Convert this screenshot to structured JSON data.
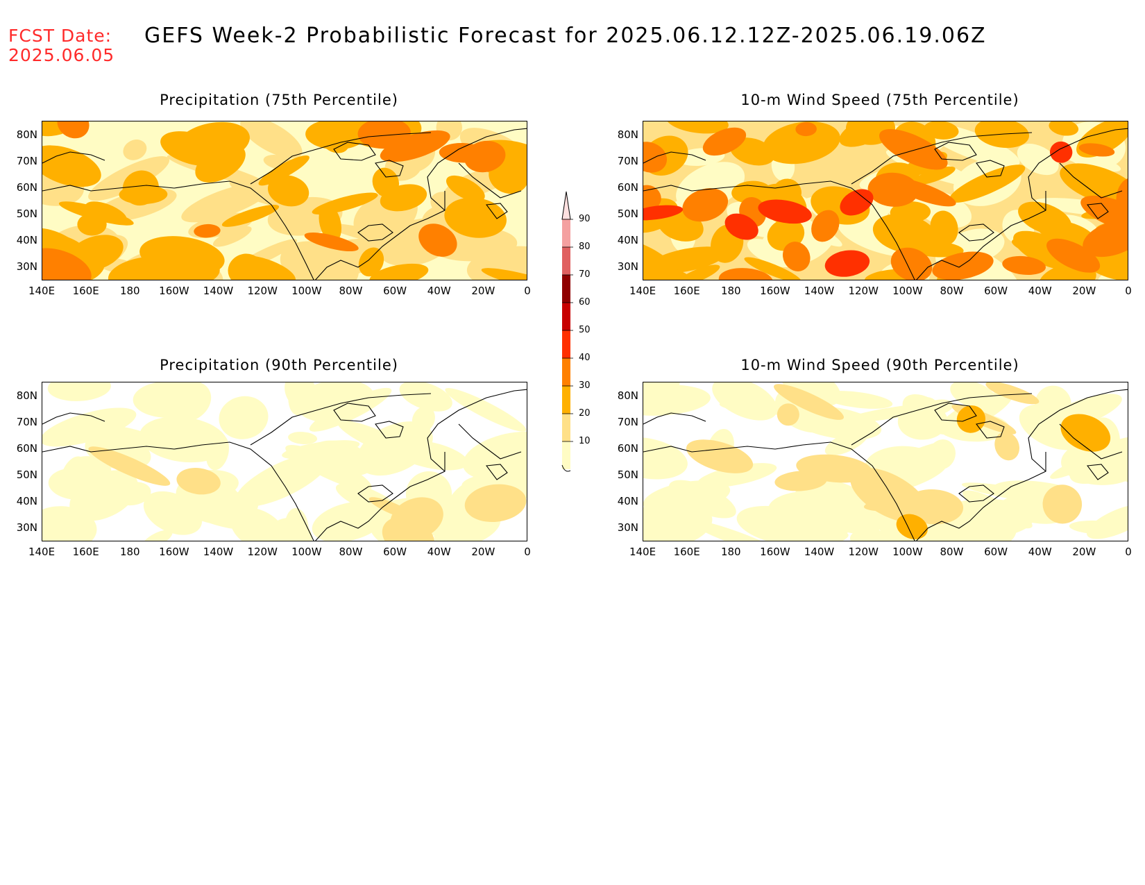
{
  "header": {
    "fcst_label": "FCST Date:",
    "fcst_date": "2025.06.05",
    "title": "GEFS Week-2 Probabilistic Forecast for 2025.06.12.12Z-2025.06.19.06Z"
  },
  "panels": [
    {
      "id": "precip75",
      "title": "Precipitation (75th Percentile)"
    },
    {
      "id": "wind75",
      "title": "10-m Wind Speed (75th Percentile)"
    },
    {
      "id": "precip90",
      "title": "Precipitation (90th Percentile)"
    },
    {
      "id": "wind90",
      "title": "10-m Wind Speed (90th Percentile)"
    }
  ],
  "axes": {
    "lat_labels": [
      "80N",
      "70N",
      "60N",
      "50N",
      "40N",
      "30N"
    ],
    "lon_labels": [
      "140E",
      "160E",
      "180",
      "160W",
      "140W",
      "120W",
      "100W",
      "80W",
      "60W",
      "40W",
      "20W",
      "0"
    ]
  },
  "colorbar": {
    "levels": [
      "90",
      "80",
      "70",
      "60",
      "50",
      "40",
      "30",
      "20",
      "10"
    ],
    "colors": {
      "c10": "#fffcc4",
      "c20": "#ffe088",
      "c30": "#ffb000",
      "c40": "#ff8000",
      "c50": "#ff3000",
      "c60": "#c80000",
      "c70": "#900000",
      "c80": "#e06060",
      "c90": "#f4a0a0",
      "top": "#fde0e0"
    }
  }
}
